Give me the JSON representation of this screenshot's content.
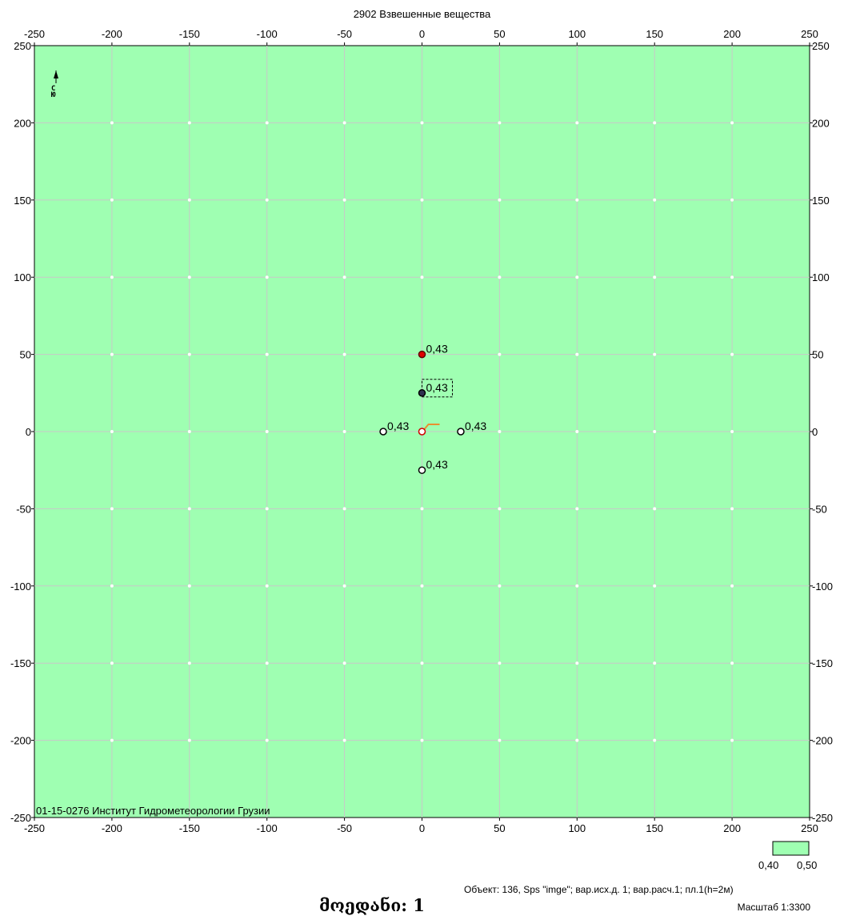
{
  "chart_data": {
    "type": "scatter",
    "title": "2902 Взвешенные вещества",
    "xlim": [
      -250,
      250
    ],
    "ylim": [
      -250,
      250
    ],
    "x_ticks": [
      "-250",
      "-200",
      "-150",
      "-100",
      "-50",
      "0",
      "50",
      "100",
      "150",
      "200",
      "250"
    ],
    "y_ticks": [
      "250",
      "200",
      "150",
      "100",
      "50",
      "0",
      "-50",
      "-100",
      "-150",
      "-200",
      "-250"
    ],
    "grid": true,
    "background_color": "#9fffb2",
    "points": [
      {
        "x": 0,
        "y": 50,
        "label": "0,43",
        "style": "red-filled"
      },
      {
        "x": 0,
        "y": 25,
        "label": "0,43",
        "style": "dark-filled"
      },
      {
        "x": -25,
        "y": 0,
        "label": "0,43",
        "style": "open"
      },
      {
        "x": 25,
        "y": 0,
        "label": "0,43",
        "style": "open"
      },
      {
        "x": 0,
        "y": -25,
        "label": "0,43",
        "style": "open"
      },
      {
        "x": 0,
        "y": 0,
        "label": "",
        "style": "red-open"
      }
    ],
    "legend": {
      "placement": "bottom-right",
      "color": "#9fffb2",
      "min_label": "0,40",
      "max_label": "0,50"
    },
    "org_label": "01-15-0276 Институт Гидрометеорологии Грузии",
    "object_info": "Объект: 136, Sps \"imge\"; вар.исх.д. 1; вар.расч.1; пл.1(h=2м)",
    "scale": "Масштаб 1:3300",
    "caption": "მოედანი: 1"
  }
}
